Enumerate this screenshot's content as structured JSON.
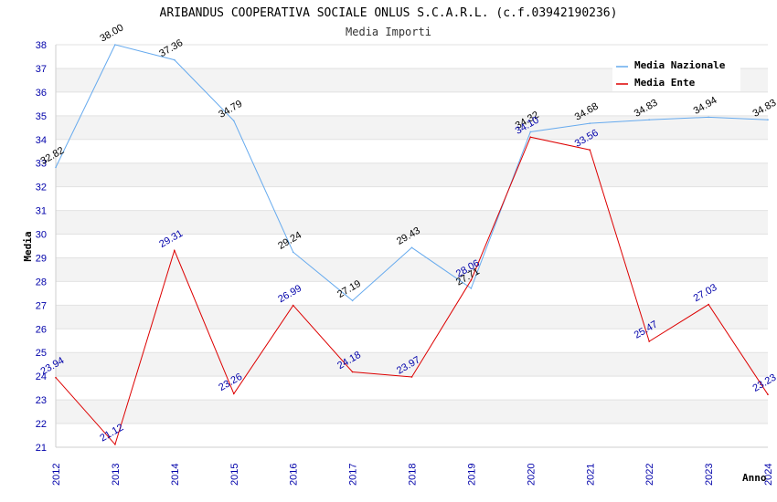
{
  "chart_data": {
    "type": "line",
    "title": "ARIBANDUS COOPERATIVA SOCIALE ONLUS S.C.A.R.L. (c.f.03942190236)",
    "subtitle": "Media Importi",
    "xlabel": "Anno",
    "ylabel": "Media",
    "ylim": [
      21,
      38
    ],
    "yticks": [
      "21",
      "22",
      "23",
      "24",
      "25",
      "26",
      "27",
      "28",
      "29",
      "30",
      "31",
      "32",
      "33",
      "34",
      "35",
      "36",
      "37",
      "38"
    ],
    "x": [
      "2012",
      "2013",
      "2014",
      "2015",
      "2016",
      "2017",
      "2018",
      "2019",
      "2020",
      "2021",
      "2022",
      "2023",
      "2024"
    ],
    "grid": "horizontal alternating bands",
    "legend_position": "top-right",
    "series": [
      {
        "name": "Media Nazionale",
        "color": "#66aaee",
        "values": [
          32.82,
          38.0,
          37.36,
          34.79,
          29.24,
          27.19,
          29.43,
          27.71,
          34.32,
          34.68,
          34.83,
          34.94,
          34.83
        ],
        "labels": [
          "32.82",
          "38.00",
          "37.36",
          "34.79",
          "29.24",
          "27.19",
          "29.43",
          "27.71",
          "34.32",
          "34.68",
          "34.83",
          "34.94",
          "34.83"
        ]
      },
      {
        "name": "Media Ente",
        "color": "#dd0000",
        "values": [
          23.94,
          21.12,
          29.31,
          23.26,
          26.99,
          24.18,
          23.97,
          28.06,
          34.1,
          33.56,
          25.47,
          27.03,
          23.23
        ],
        "labels": [
          "23.94",
          "21.12",
          "29.31",
          "23.26",
          "26.99",
          "24.18",
          "23.97",
          "28.06",
          "34.10",
          "33.56",
          "25.47",
          "27.03",
          "23.23"
        ]
      }
    ]
  }
}
